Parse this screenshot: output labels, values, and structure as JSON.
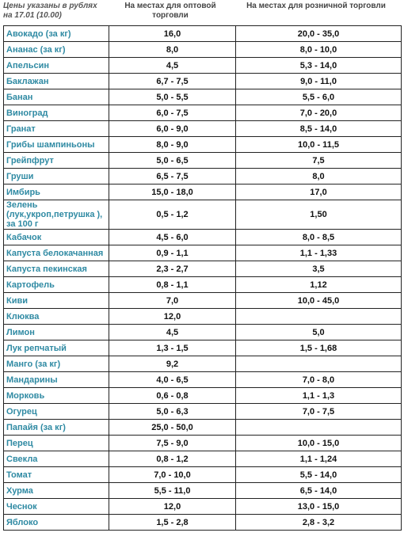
{
  "header": {
    "note": "Цены указаны в рублях на 17.01 (10.00)",
    "wholesale": "На местах для оптовой торговли",
    "retail": "На местах для розничной торговли"
  },
  "table": {
    "rows": [
      [
        "Авокадо (за кг)",
        "16,0",
        "20,0 - 35,0"
      ],
      [
        "Ананас (за кг)",
        "8,0",
        "8,0 - 10,0"
      ],
      [
        "Апельсин",
        "4,5",
        "5,3 - 14,0"
      ],
      [
        "Баклажан",
        "6,7 - 7,5",
        "9,0 - 11,0"
      ],
      [
        "Банан",
        "5,0 - 5,5",
        "5,5 - 6,0"
      ],
      [
        "Виноград",
        "6,0 - 7,5",
        "7,0 - 20,0"
      ],
      [
        "Гранат",
        "6,0 - 9,0",
        "8,5 - 14,0"
      ],
      [
        "Грибы шампиньоны",
        "8,0 - 9,0",
        "10,0 - 11,5"
      ],
      [
        "Грейпфрут",
        "5,0 - 6,5",
        "7,5"
      ],
      [
        "Груши",
        "6,5 - 7,5",
        "8,0"
      ],
      [
        "Имбирь",
        "15,0 - 18,0",
        "17,0"
      ],
      [
        "Зелень (лук,укроп,петрушка ), за 100 г",
        "0,5 - 1,2",
        "1,50"
      ],
      [
        "Кабачок",
        "4,5 - 6,0",
        "8,0 - 8,5"
      ],
      [
        "Капуста белокачанная",
        "0,9 - 1,1",
        "1,1 - 1,33"
      ],
      [
        "Капуста пекинская",
        "2,3 - 2,7",
        "3,5"
      ],
      [
        "Картофель",
        "0,8 - 1,1",
        "1,12"
      ],
      [
        "Киви",
        "7,0",
        "10,0 - 45,0"
      ],
      [
        "Клюква",
        "12,0"
      ],
      [
        "Лимон",
        "4,5",
        "5,0"
      ],
      [
        "Лук репчатый",
        "1,3 - 1,5",
        "1,5 - 1,68"
      ],
      [
        "Манго (за кг)",
        "9,2"
      ],
      [
        "Мандарины",
        "4,0 - 6,5",
        "7,0 - 8,0"
      ],
      [
        "Морковь",
        "0,6 - 0,8",
        "1,1 - 1,3"
      ],
      [
        "Огурец",
        "5,0 - 6,3",
        "7,0 - 7,5"
      ],
      [
        "Папайя (за кг)",
        "25,0 - 50,0"
      ],
      [
        "Перец",
        "7,5 - 9,0",
        "10,0 - 15,0"
      ],
      [
        "Свекла",
        "0,8 - 1,2",
        "1,1 - 1,24"
      ],
      [
        "Томат",
        "7,0 - 10,0",
        "5,5 - 14,0"
      ],
      [
        "Хурма",
        "5,5 - 11,0",
        "6,5 - 14,0"
      ],
      [
        "Чеснок",
        "12,0",
        "13,0 - 15,0"
      ],
      [
        "Яблоко",
        "1,5 - 2,8",
        "2,8 - 3,2"
      ]
    ]
  }
}
